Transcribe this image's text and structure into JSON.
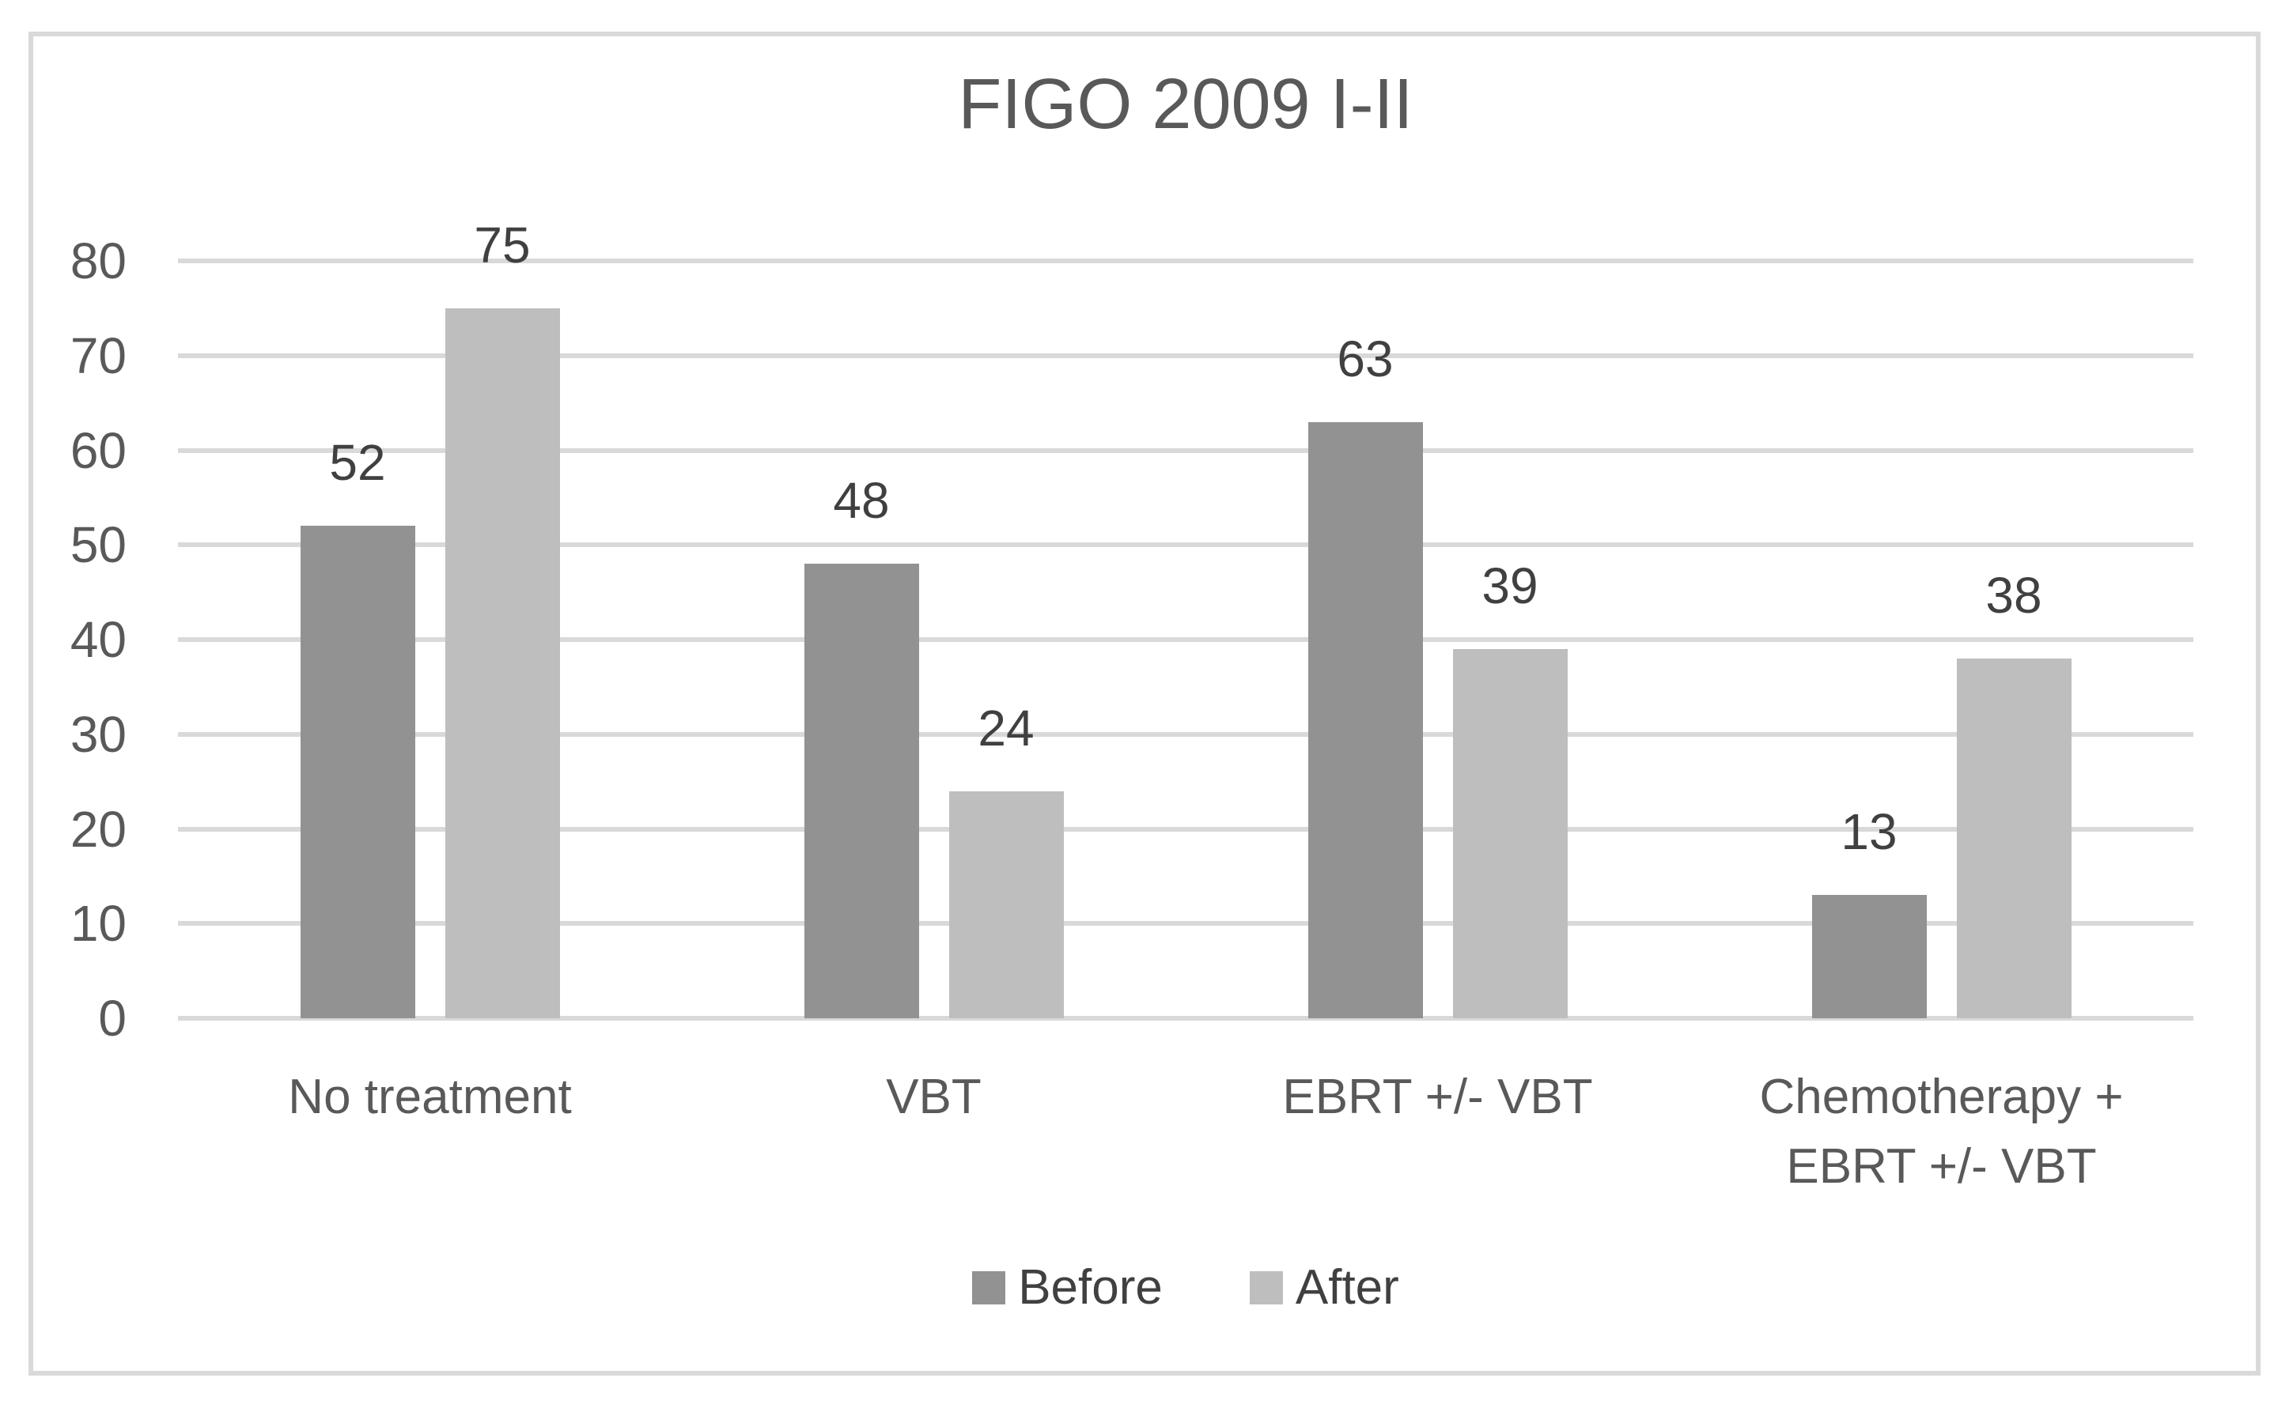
{
  "figure": {
    "background_color": "#ffffff",
    "border_color": "#d9d9d9"
  },
  "chart_data": {
    "type": "bar",
    "title": "FIGO 2009 I-II",
    "categories": [
      "No treatment",
      "VBT",
      "EBRT +/- VBT",
      "Chemotherapy + EBRT +/- VBT"
    ],
    "series": [
      {
        "name": "Before",
        "color": "#929292",
        "values": [
          52,
          48,
          63,
          13
        ]
      },
      {
        "name": "After",
        "color": "#bebebe",
        "values": [
          75,
          24,
          39,
          38
        ]
      }
    ],
    "data_labels": true,
    "xlabel": "",
    "ylabel": "",
    "ylim": [
      0,
      80
    ],
    "yticks": [
      0,
      10,
      20,
      30,
      40,
      50,
      60,
      70,
      80
    ],
    "grid": true,
    "gridline_color": "#d9d9d9",
    "axis_text_color": "#595959",
    "data_label_color": "#404040",
    "legend_position": "bottom"
  }
}
